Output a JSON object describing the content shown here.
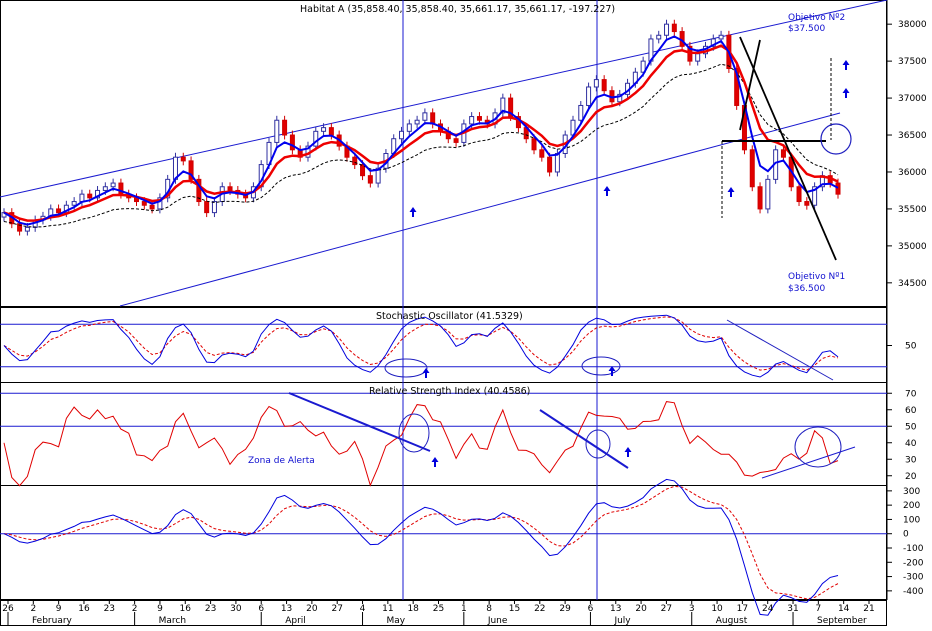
{
  "chart_data": [
    {
      "type": "candlestick",
      "title": "Habitat A (35,858.40, 35,858.40, 35,661.17, 35,661.17, -197.227)",
      "ylim": [
        34200,
        38300
      ],
      "yticks": [
        "38000",
        "37500",
        "37000",
        "36500",
        "36000",
        "35500",
        "35000",
        "34500"
      ],
      "closes": [
        35450,
        35300,
        35200,
        35250,
        35350,
        35400,
        35500,
        35450,
        35550,
        35600,
        35700,
        35650,
        35750,
        35800,
        35850,
        35700,
        35650,
        35600,
        35550,
        35500,
        35650,
        35900,
        36200,
        36150,
        35900,
        35600,
        35450,
        35600,
        35800,
        35750,
        35700,
        35650,
        35800,
        36100,
        36400,
        36700,
        36500,
        36300,
        36200,
        36350,
        36550,
        36600,
        36500,
        36350,
        36200,
        36100,
        35950,
        35850,
        36050,
        36250,
        36450,
        36550,
        36650,
        36700,
        36800,
        36650,
        36550,
        36450,
        36400,
        36650,
        36750,
        36700,
        36650,
        36800,
        37000,
        36750,
        36600,
        36450,
        36300,
        36200,
        36000,
        36250,
        36500,
        36700,
        36900,
        37150,
        37250,
        37100,
        36950,
        37050,
        37200,
        37350,
        37500,
        37800,
        37850,
        38000,
        37900,
        37700,
        37500,
        37600,
        37700,
        37800,
        37850,
        37400,
        36900,
        36300,
        35800,
        35500,
        35900,
        36300,
        36200,
        35800,
        35600,
        35550,
        35800,
        35950,
        35850,
        35700
      ],
      "series": [
        {
          "name": "",
          "color": "#0000ff"
        },
        {
          "name": "",
          "color": "#ff0000"
        },
        {
          "name": "",
          "color": "#000000"
        }
      ],
      "annotations": {
        "objetivo2": "Objetivo Nº2",
        "objetivo2_value": "$37.500",
        "objetivo1": "Objetivo Nº1",
        "objetivo1_value": "$36.500"
      }
    },
    {
      "type": "line",
      "title": "Stochastic Oscillator (41.5329)",
      "ylim": [
        0,
        100
      ],
      "yticks": [
        "50"
      ]
    },
    {
      "type": "line",
      "title": "Relative Strength Index (40.4586)",
      "ylim": [
        15,
        75
      ],
      "yticks": [
        "70",
        "60",
        "50",
        "40",
        "30",
        "20"
      ],
      "annotation": "Zona de Alerta"
    },
    {
      "type": "line",
      "title": "",
      "ylim": [
        -450,
        320
      ],
      "yticks": [
        "300",
        "200",
        "100",
        "0",
        "-100",
        "-200",
        "-300",
        "-400"
      ]
    }
  ],
  "x_axis": {
    "day_labels": [
      "26",
      "2",
      "9",
      "16",
      "23",
      "2",
      "9",
      "16",
      "23",
      "30",
      "6",
      "13",
      "20",
      "27",
      "4",
      "11",
      "18",
      "25",
      "1",
      "8",
      "15",
      "22",
      "29",
      "6",
      "13",
      "20",
      "27",
      "3",
      "10",
      "17",
      "24",
      "31",
      "7",
      "14",
      "21"
    ],
    "month_labels": [
      "February",
      "March",
      "April",
      "May",
      "June",
      "July",
      "August",
      "September"
    ]
  }
}
